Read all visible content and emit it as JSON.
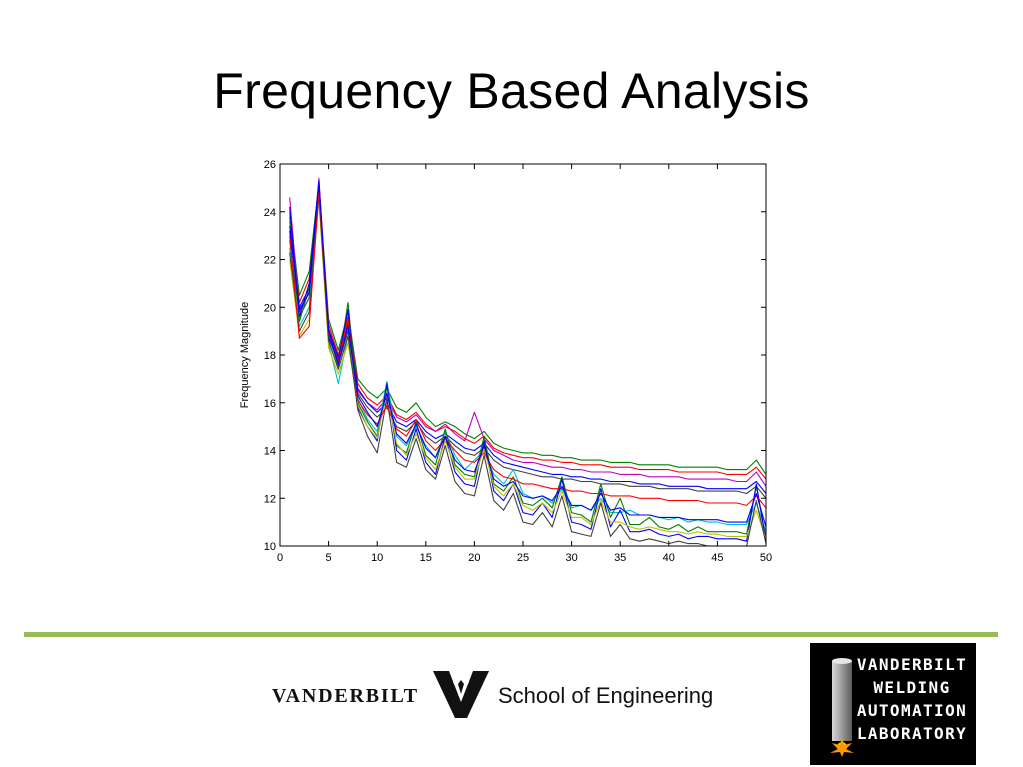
{
  "slide": {
    "title": "Frequency Based Analysis"
  },
  "colors": {
    "accent_line": "#9bbb59",
    "series_palette": [
      "#0000ff",
      "#008000",
      "#ff0000",
      "#00bfbf",
      "#bf00bf",
      "#bfbf00",
      "#404040"
    ]
  },
  "chart_data": {
    "type": "line",
    "title": "",
    "xlabel": "",
    "ylabel": "Frequency Magnitude",
    "xlim": [
      0,
      50
    ],
    "ylim": [
      10,
      26
    ],
    "xticks": [
      "0",
      "5",
      "10",
      "15",
      "20",
      "25",
      "30",
      "35",
      "40",
      "45",
      "50"
    ],
    "yticks": [
      "10",
      "12",
      "14",
      "16",
      "18",
      "20",
      "22",
      "24",
      "26"
    ],
    "grid": false,
    "legend": "none",
    "x": [
      1,
      2,
      3,
      4,
      5,
      6,
      7,
      8,
      9,
      10,
      11,
      12,
      13,
      14,
      15,
      16,
      17,
      18,
      19,
      20,
      21,
      22,
      23,
      24,
      25,
      26,
      27,
      28,
      29,
      30,
      31,
      32,
      33,
      34,
      35,
      36,
      37,
      38,
      39,
      40,
      41,
      42,
      43,
      44,
      45,
      46,
      47,
      48,
      49,
      50
    ],
    "series": [
      {
        "color": "#008000",
        "values": [
          24.0,
          20.5,
          21.5,
          25.2,
          19.5,
          18.2,
          19.8,
          17.0,
          16.5,
          16.2,
          16.6,
          15.8,
          15.6,
          16.0,
          15.4,
          15.0,
          15.2,
          15.0,
          14.7,
          14.5,
          14.8,
          14.3,
          14.1,
          14.0,
          13.9,
          13.9,
          13.8,
          13.8,
          13.7,
          13.7,
          13.6,
          13.6,
          13.6,
          13.5,
          13.5,
          13.5,
          13.4,
          13.4,
          13.4,
          13.4,
          13.3,
          13.3,
          13.3,
          13.3,
          13.3,
          13.2,
          13.2,
          13.2,
          13.6,
          13.0
        ]
      },
      {
        "color": "#ff0000",
        "values": [
          23.6,
          20.2,
          21.2,
          25.0,
          19.3,
          18.0,
          19.6,
          16.8,
          16.2,
          15.9,
          16.3,
          15.5,
          15.3,
          15.6,
          15.1,
          14.8,
          15.0,
          14.8,
          14.5,
          14.3,
          14.6,
          14.1,
          13.9,
          13.8,
          13.7,
          13.7,
          13.6,
          13.6,
          13.5,
          13.5,
          13.4,
          13.4,
          13.4,
          13.3,
          13.3,
          13.3,
          13.2,
          13.2,
          13.2,
          13.2,
          13.1,
          13.1,
          13.1,
          13.1,
          13.1,
          13.0,
          13.0,
          13.0,
          13.3,
          12.8
        ]
      },
      {
        "color": "#bf00bf",
        "values": [
          24.6,
          19.8,
          20.6,
          25.4,
          19.0,
          17.8,
          19.4,
          16.5,
          16.0,
          15.7,
          16.2,
          15.4,
          15.2,
          15.5,
          15.0,
          14.8,
          15.1,
          14.7,
          14.4,
          15.6,
          14.5,
          14.0,
          13.8,
          13.6,
          13.5,
          13.5,
          13.4,
          13.3,
          13.3,
          13.2,
          13.2,
          13.1,
          13.1,
          13.1,
          13.0,
          13.0,
          13.0,
          12.9,
          12.9,
          12.9,
          12.9,
          12.8,
          12.8,
          12.8,
          12.8,
          12.8,
          12.7,
          12.7,
          13.1,
          12.5
        ]
      },
      {
        "color": "#0000ff",
        "values": [
          23.2,
          20.0,
          20.8,
          25.1,
          19.1,
          17.9,
          19.3,
          16.6,
          16.0,
          15.6,
          16.0,
          15.2,
          15.0,
          15.3,
          14.8,
          14.5,
          14.7,
          14.4,
          14.1,
          14.0,
          14.3,
          13.8,
          13.5,
          13.4,
          13.3,
          13.2,
          13.1,
          13.0,
          13.0,
          12.9,
          12.9,
          12.8,
          12.8,
          12.7,
          12.7,
          12.7,
          12.6,
          12.6,
          12.6,
          12.5,
          12.5,
          12.5,
          12.5,
          12.4,
          12.4,
          12.4,
          12.4,
          12.4,
          12.7,
          12.2
        ]
      },
      {
        "color": "#404040",
        "values": [
          22.8,
          19.6,
          20.4,
          24.8,
          18.8,
          17.6,
          19.0,
          16.4,
          15.8,
          15.4,
          15.8,
          15.0,
          14.8,
          15.2,
          14.6,
          14.3,
          14.6,
          14.2,
          13.9,
          13.8,
          14.1,
          13.6,
          13.3,
          13.2,
          13.1,
          13.0,
          12.9,
          12.9,
          12.8,
          12.8,
          12.7,
          12.7,
          12.6,
          12.6,
          12.6,
          12.5,
          12.5,
          12.5,
          12.4,
          12.4,
          12.4,
          12.4,
          12.3,
          12.3,
          12.3,
          12.3,
          12.3,
          12.2,
          12.5,
          12.0
        ]
      },
      {
        "color": "#00bfbf",
        "values": [
          22.5,
          19.2,
          20.0,
          24.6,
          18.5,
          16.8,
          18.8,
          16.2,
          15.3,
          14.8,
          16.9,
          14.6,
          14.2,
          15.0,
          14.2,
          13.7,
          14.8,
          13.8,
          13.2,
          13.6,
          14.0,
          13.0,
          12.6,
          13.2,
          12.2,
          12.0,
          12.1,
          11.8,
          12.4,
          11.6,
          11.7,
          11.5,
          12.0,
          11.4,
          11.4,
          11.5,
          11.3,
          11.3,
          11.2,
          11.1,
          11.2,
          11.0,
          11.1,
          11.0,
          11.0,
          10.9,
          10.9,
          10.9,
          11.8,
          10.6
        ]
      },
      {
        "color": "#008000",
        "values": [
          23.8,
          19.4,
          20.8,
          25.0,
          18.9,
          17.5,
          20.2,
          16.0,
          15.2,
          14.6,
          16.6,
          14.2,
          13.9,
          15.2,
          13.8,
          13.4,
          14.9,
          13.4,
          13.0,
          12.9,
          14.6,
          12.6,
          12.3,
          12.9,
          11.8,
          11.7,
          12.0,
          11.6,
          12.9,
          11.4,
          11.3,
          11.0,
          12.6,
          11.2,
          12.0,
          10.9,
          10.9,
          11.2,
          10.8,
          10.7,
          10.9,
          10.6,
          10.8,
          10.6,
          10.6,
          10.6,
          10.6,
          10.5,
          12.5,
          10.3
        ]
      },
      {
        "color": "#0000ff",
        "values": [
          24.2,
          19.6,
          21.0,
          25.3,
          18.7,
          17.8,
          19.9,
          15.8,
          15.0,
          14.4,
          16.8,
          14.0,
          13.6,
          14.9,
          13.5,
          13.0,
          14.6,
          13.1,
          12.6,
          12.5,
          14.4,
          12.3,
          11.9,
          12.6,
          11.4,
          11.3,
          11.8,
          11.2,
          12.8,
          11.0,
          10.9,
          10.7,
          12.4,
          10.8,
          11.5,
          10.6,
          10.6,
          10.7,
          10.5,
          10.4,
          10.5,
          10.3,
          10.4,
          10.4,
          10.3,
          10.3,
          10.3,
          10.2,
          12.6,
          10.2
        ]
      },
      {
        "color": "#bfbf00",
        "values": [
          22.0,
          18.8,
          19.5,
          24.5,
          18.3,
          17.2,
          18.5,
          15.9,
          15.0,
          14.5,
          16.5,
          14.3,
          13.8,
          14.7,
          13.7,
          13.2,
          14.4,
          13.3,
          12.8,
          12.8,
          14.1,
          12.5,
          12.1,
          12.6,
          11.7,
          11.5,
          11.8,
          11.4,
          12.3,
          11.2,
          11.2,
          10.9,
          11.9,
          11.0,
          11.0,
          10.8,
          10.7,
          10.8,
          10.7,
          10.6,
          10.6,
          10.5,
          10.6,
          10.5,
          10.5,
          10.4,
          10.4,
          10.4,
          11.5,
          10.3
        ]
      },
      {
        "color": "#404040",
        "values": [
          22.3,
          19.0,
          19.8,
          24.7,
          18.6,
          17.4,
          18.8,
          15.7,
          14.6,
          13.9,
          16.2,
          13.5,
          13.3,
          14.5,
          13.2,
          12.8,
          14.2,
          12.7,
          12.2,
          12.1,
          13.8,
          11.9,
          11.5,
          12.2,
          11.0,
          10.9,
          11.4,
          10.8,
          12.1,
          10.6,
          10.5,
          10.4,
          11.8,
          10.4,
          10.9,
          10.3,
          10.2,
          10.3,
          10.2,
          10.1,
          10.2,
          10.1,
          10.1,
          10.0,
          10.0,
          10.0,
          10.0,
          10.0,
          11.9,
          10.1
        ]
      },
      {
        "color": "#ff0000",
        "values": [
          23.0,
          18.7,
          19.2,
          24.9,
          18.9,
          17.7,
          19.5,
          16.1,
          15.5,
          15.1,
          15.9,
          14.9,
          14.6,
          15.3,
          14.4,
          14.0,
          14.5,
          14.0,
          13.6,
          13.5,
          13.9,
          13.2,
          12.9,
          12.8,
          12.6,
          12.6,
          12.5,
          12.4,
          12.4,
          12.3,
          12.3,
          12.2,
          12.2,
          12.1,
          12.1,
          12.1,
          12.0,
          12.0,
          12.0,
          11.9,
          11.9,
          11.9,
          11.9,
          11.8,
          11.8,
          11.8,
          11.8,
          11.7,
          12.1,
          11.6
        ]
      },
      {
        "color": "#0000ff",
        "values": [
          23.4,
          19.9,
          20.6,
          25.2,
          19.0,
          17.6,
          19.2,
          16.3,
          15.6,
          15.0,
          16.4,
          14.7,
          14.3,
          15.1,
          14.1,
          13.7,
          14.6,
          13.6,
          13.2,
          13.1,
          14.2,
          12.8,
          12.5,
          12.7,
          12.1,
          12.0,
          12.1,
          11.9,
          12.5,
          11.7,
          11.7,
          11.5,
          12.2,
          11.5,
          11.6,
          11.3,
          11.3,
          11.3,
          11.2,
          11.2,
          11.2,
          11.1,
          11.1,
          11.1,
          11.1,
          11.0,
          11.0,
          11.0,
          12.2,
          10.8
        ]
      }
    ]
  },
  "footer": {
    "university_wordmark": "VANDERBILT",
    "school_name": "School of Engineering",
    "lab_badge_lines": [
      "VANDERBILT",
      "WELDING",
      "AUTOMATION",
      "LABORATORY"
    ]
  }
}
